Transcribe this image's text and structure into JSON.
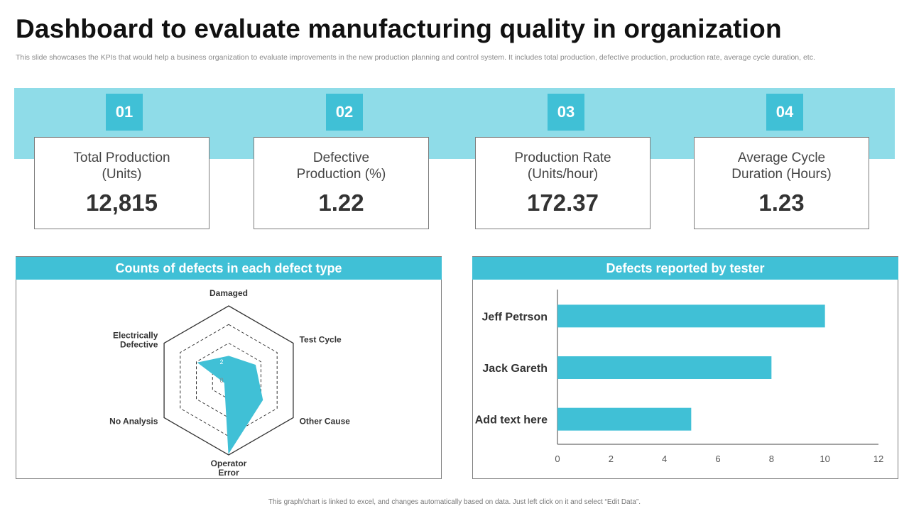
{
  "page": {
    "title": "Dashboard to evaluate manufacturing quality in organization",
    "subtitle": "This slide showcases the KPIs that would help a business organization to evaluate improvements in the new production planning and control system. It includes total production, defective production, production rate, average cycle duration, etc.",
    "footer": "This graph/chart is linked to excel, and changes automatically based on data. Just left click on it and select “Edit Data”."
  },
  "kpis": [
    {
      "number": "01",
      "label": "Total Production (Units)",
      "value": "12,815"
    },
    {
      "number": "02",
      "label": "Defective Production (%)",
      "value": "1.22"
    },
    {
      "number": "03",
      "label": "Production Rate (Units/hour)",
      "value": "172.37"
    },
    {
      "number": "04",
      "label": "Average Cycle Duration (Hours)",
      "value": "1.23"
    }
  ],
  "colors": {
    "accent": "#40c0d6",
    "band": "#8fdce8",
    "border": "#7d7d7d"
  },
  "chart_data": [
    {
      "type": "radar",
      "title": "Counts of defects in each defect type",
      "categories": [
        "Damaged",
        "Test Cycle",
        "Other Cause",
        "Operator Error",
        "No Analysis",
        "Electrically Defective"
      ],
      "values": [
        2.6,
        3.3,
        4.2,
        7.8,
        0.5,
        3.8
      ],
      "rmax": 8,
      "ticks": [
        0,
        2
      ],
      "ring_step": 2
    },
    {
      "type": "bar",
      "orientation": "horizontal",
      "title": "Defects reported by tester",
      "categories": [
        "Jeff Petrson",
        "Jack Gareth",
        "Add text here"
      ],
      "values": [
        10,
        8,
        5
      ],
      "xlim": [
        0,
        12
      ],
      "xticks": [
        0,
        2,
        4,
        6,
        8,
        10,
        12
      ]
    }
  ]
}
